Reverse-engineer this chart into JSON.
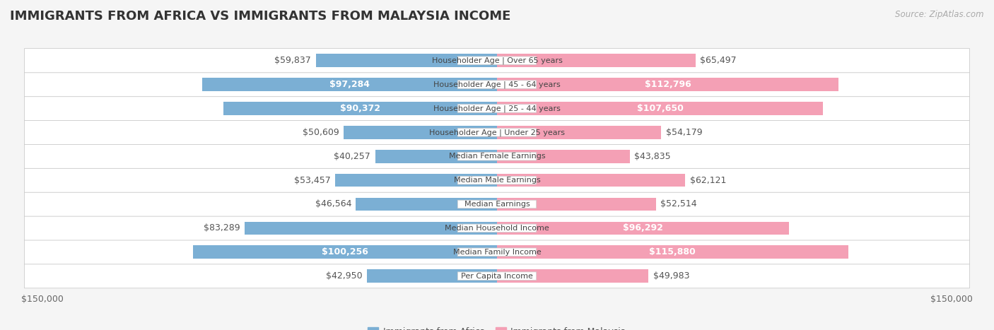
{
  "title": "IMMIGRANTS FROM AFRICA VS IMMIGRANTS FROM MALAYSIA INCOME",
  "source": "Source: ZipAtlas.com",
  "categories": [
    "Per Capita Income",
    "Median Family Income",
    "Median Household Income",
    "Median Earnings",
    "Median Male Earnings",
    "Median Female Earnings",
    "Householder Age | Under 25 years",
    "Householder Age | 25 - 44 years",
    "Householder Age | 45 - 64 years",
    "Householder Age | Over 65 years"
  ],
  "africa_values": [
    42950,
    100256,
    83289,
    46564,
    53457,
    40257,
    50609,
    90372,
    97284,
    59837
  ],
  "malaysia_values": [
    49983,
    115880,
    96292,
    52514,
    62121,
    43835,
    54179,
    107650,
    112796,
    65497
  ],
  "africa_labels": [
    "$42,950",
    "$100,256",
    "$83,289",
    "$46,564",
    "$53,457",
    "$40,257",
    "$50,609",
    "$90,372",
    "$97,284",
    "$59,837"
  ],
  "malaysia_labels": [
    "$49,983",
    "$115,880",
    "$96,292",
    "$52,514",
    "$62,121",
    "$43,835",
    "$54,179",
    "$107,650",
    "$112,796",
    "$65,497"
  ],
  "africa_color": "#7BAFD4",
  "malaysia_color": "#F4A0B5",
  "africa_white_label": [
    false,
    true,
    false,
    false,
    false,
    false,
    false,
    true,
    true,
    false
  ],
  "malaysia_white_label": [
    false,
    true,
    true,
    false,
    false,
    false,
    false,
    true,
    true,
    false
  ],
  "max_value": 150000,
  "axis_label": "$150,000",
  "background_color": "#f5f5f5",
  "row_bg_color": "#ffffff",
  "bar_height": 0.55,
  "title_fontsize": 13,
  "label_fontsize": 9.0
}
